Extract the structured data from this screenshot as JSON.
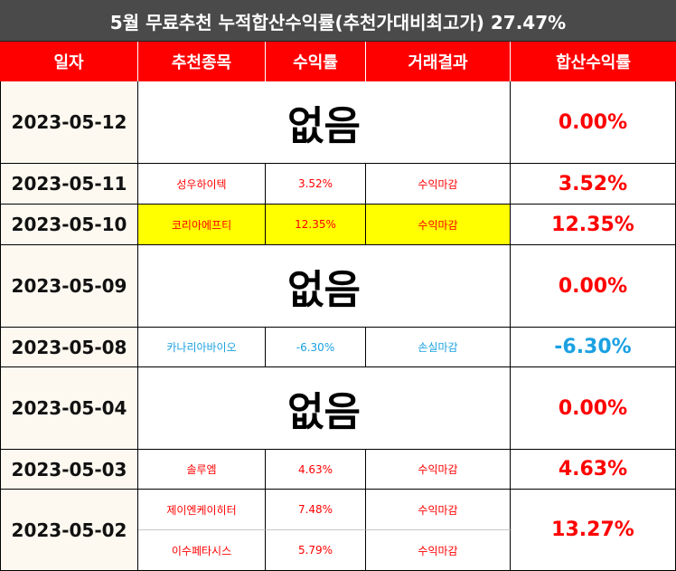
{
  "title": "5월 무료추천 누적합산수익률(추천가대비최고가) 27.47%",
  "headers": [
    "일자",
    "추천종목",
    "수익률",
    "거래결과",
    "합산수익률"
  ],
  "none_label": "없음",
  "colors": {
    "header_red": "#ff0000",
    "title_bg": "#4a4a4a",
    "loss_blue": "#1ba1e2",
    "highlight": "#ffff00"
  },
  "rows": [
    {
      "date": "2023-05-12",
      "total": "0.00%"
    },
    {
      "date": "2023-05-11",
      "stock": "성우하이텍",
      "return": "3.52%",
      "result": "수익마감",
      "total": "3.52%"
    },
    {
      "date": "2023-05-10",
      "stock": "코리아에프티",
      "return": "12.35%",
      "result": "수익마감",
      "total": "12.35%"
    },
    {
      "date": "2023-05-09",
      "total": "0.00%"
    },
    {
      "date": "2023-05-08",
      "stock": "카나리아바이오",
      "return": "-6.30%",
      "result": "손실마감",
      "total": "-6.30%"
    },
    {
      "date": "2023-05-04",
      "total": "0.00%"
    },
    {
      "date": "2023-05-03",
      "stock": "솔루엠",
      "return": "4.63%",
      "result": "수익마감",
      "total": "4.63%"
    },
    {
      "date": "2023-05-02",
      "total": "13.27%",
      "items": [
        {
          "stock": "제이엔케이히터",
          "return": "7.48%",
          "result": "수익마감"
        },
        {
          "stock": "이수페타시스",
          "return": "5.79%",
          "result": "수익마감"
        }
      ]
    }
  ]
}
